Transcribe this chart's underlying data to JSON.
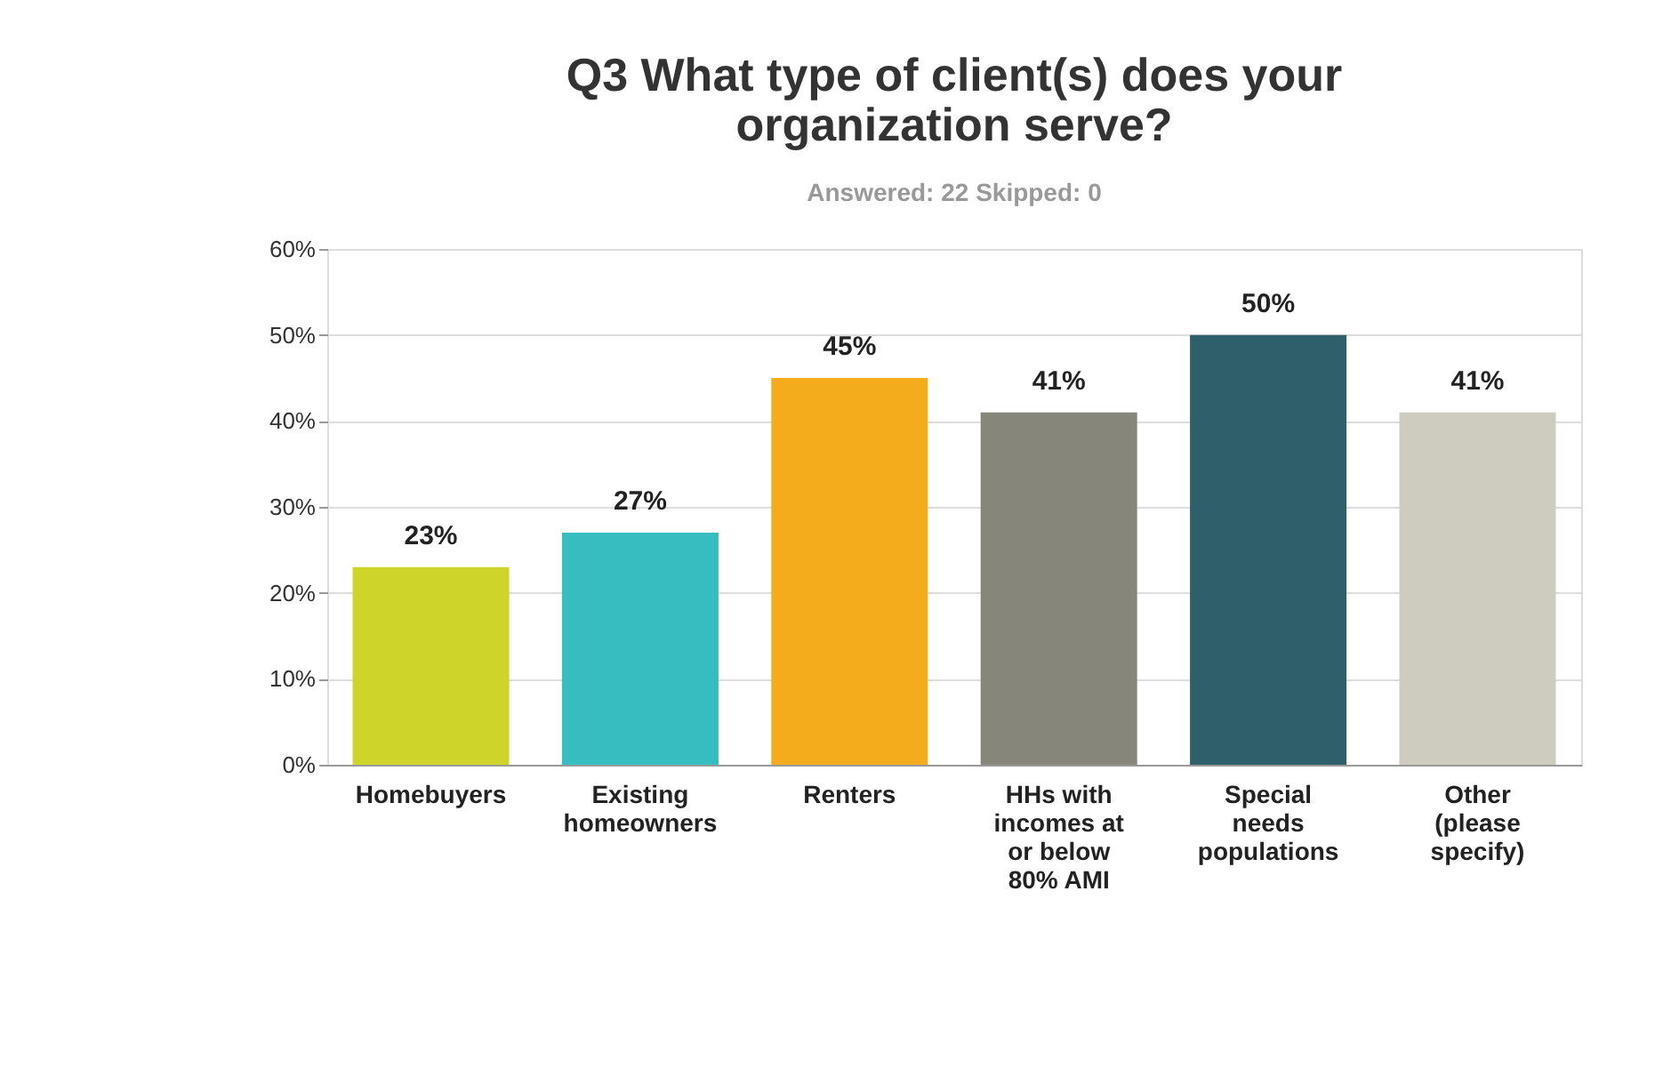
{
  "chart_data": {
    "type": "bar",
    "title": "Q3 What type of client(s) does your organization serve?",
    "subtitle": "Answered: 22    Skipped: 0",
    "categories": [
      "Homebuyers",
      "Existing homeowners",
      "Renters",
      "HHs with incomes at or below 80% AMI",
      "Special needs populations",
      "Other (please specify)"
    ],
    "values": [
      23,
      27,
      45,
      41,
      50,
      41
    ],
    "colors": [
      "#cfd42a",
      "#35bdbf",
      "#f4ac1c",
      "#86877a",
      "#2e5f6b",
      "#cdccbf"
    ],
    "value_labels": [
      "23%",
      "27%",
      "45%",
      "41%",
      "50%",
      "41%"
    ],
    "ylim": [
      0,
      60
    ],
    "yticks": [
      {
        "value": 0,
        "label": "0%"
      },
      {
        "value": 10,
        "label": "10%"
      },
      {
        "value": 20,
        "label": "20%"
      },
      {
        "value": 30,
        "label": "30%"
      },
      {
        "value": 40,
        "label": "40%"
      },
      {
        "value": 50,
        "label": "50%"
      },
      {
        "value": 60,
        "label": "60%"
      }
    ],
    "grid": "y"
  }
}
